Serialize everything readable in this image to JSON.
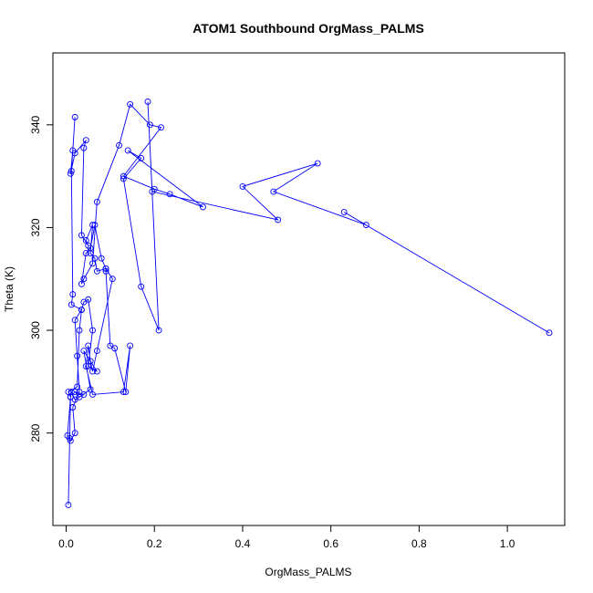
{
  "chart_data": {
    "type": "line",
    "title": "ATOM1 Southbound OrgMass_PALMS",
    "xlabel": "OrgMass_PALMS",
    "ylabel": "Theta (K)",
    "xlim": [
      -0.03,
      1.13
    ],
    "ylim": [
      262,
      354
    ],
    "x_ticks": [
      0.0,
      0.2,
      0.4,
      0.6,
      0.8,
      1.0
    ],
    "x_tick_labels": [
      "0.0",
      "0.2",
      "0.4",
      "0.6",
      "0.8",
      "1.0"
    ],
    "y_ticks": [
      280,
      300,
      320,
      340
    ],
    "y_tick_labels": [
      "280",
      "300",
      "320",
      "340"
    ],
    "grid": false,
    "legend": false,
    "series_color": "#0000ff",
    "marker": "open-circle",
    "series": [
      {
        "x": [
          0.005,
          0.01,
          0.003,
          0.008,
          0.01,
          0.02,
          0.015,
          0.03,
          0.025,
          0.02,
          0.035,
          0.04,
          0.05,
          0.06,
          0.05,
          0.07,
          0.04,
          0.055,
          0.03,
          0.02,
          0.04,
          0.02,
          0.012,
          0.01,
          0.005,
          0.025,
          0.03,
          0.035,
          0.012,
          0.015,
          0.012,
          0.02,
          0.015,
          0.01,
          0.02,
          0.045,
          0.04,
          0.035,
          0.05,
          0.045,
          0.06,
          0.055,
          0.065,
          0.07,
          0.09,
          0.09,
          0.1,
          0.11,
          0.135,
          0.145,
          0.13,
          0.06,
          0.045,
          0.05,
          0.055,
          0.06,
          0.07,
          0.105,
          0.09,
          0.08,
          0.065,
          0.055,
          0.045,
          0.035,
          0.04,
          0.06,
          0.07,
          0.12,
          0.145,
          0.19,
          0.215,
          0.13,
          0.2,
          0.235,
          0.31,
          0.14,
          0.17,
          0.13,
          0.17,
          0.21,
          0.185,
          0.195,
          0.48,
          0.4,
          0.57,
          0.47,
          0.68,
          0.63,
          1.095
        ],
        "y": [
          266,
          287,
          279.5,
          279,
          278.5,
          280,
          285,
          288,
          295,
          302,
          304,
          305.5,
          306,
          300,
          293,
          292,
          296,
          288.5,
          287,
          288,
          287.5,
          286.5,
          288,
          287,
          288,
          289,
          300,
          304,
          305,
          307,
          331,
          341.5,
          335,
          330.5,
          334.5,
          337,
          335.5,
          318.5,
          316.5,
          317.5,
          320.5,
          315,
          314,
          311.5,
          312,
          311.5,
          297,
          296.5,
          288,
          297,
          288,
          287.5,
          293,
          297,
          294,
          292,
          296,
          310,
          312,
          314,
          320.5,
          316,
          315,
          309,
          310,
          313,
          325,
          336,
          344,
          340,
          339.5,
          330,
          327.5,
          326.5,
          324,
          335,
          333.5,
          329.5,
          308.5,
          300,
          344.5,
          327,
          321.5,
          328,
          332.5,
          327,
          320.5,
          323,
          299.5
        ]
      }
    ]
  }
}
